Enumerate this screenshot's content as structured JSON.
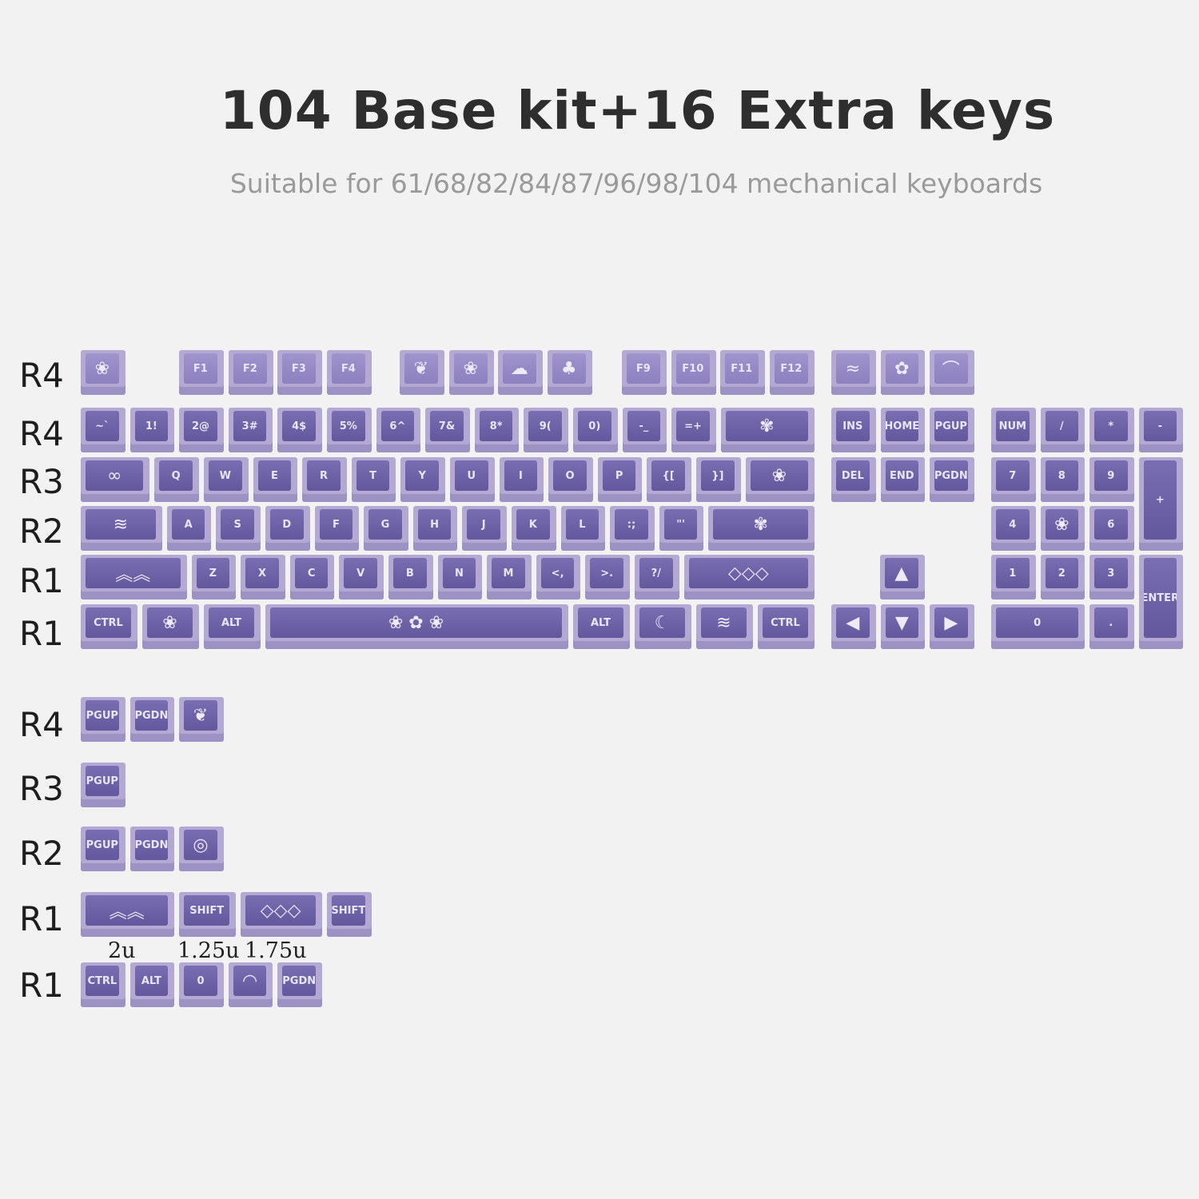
{
  "header": {
    "title": "104 Base kit+16 Extra keys",
    "subtitle": "Suitable for 61/68/82/84/87/96/98/104 mechanical keyboards"
  },
  "colors": {
    "background": "#f2f2f2",
    "keycap_face": "#6c60a6",
    "keycap_side": "#b3a9d3",
    "legend": "#e9e6f6"
  },
  "row_labels": {
    "base": [
      "R4",
      "R4",
      "R3",
      "R2",
      "R1",
      "R1"
    ],
    "extra": [
      "R4",
      "R3",
      "R2",
      "R1",
      "R1"
    ]
  },
  "size_labels": [
    "2u",
    "1.25u",
    "1.75u"
  ],
  "base_kit": {
    "f_row": [
      {
        "legend": "",
        "icon": "flower-icon"
      },
      {
        "legend": "F1"
      },
      {
        "legend": "F2"
      },
      {
        "legend": "F3"
      },
      {
        "legend": "F4"
      },
      {
        "legend": "",
        "icon": "leaf-icon"
      },
      {
        "legend": "",
        "icon": "flower-icon"
      },
      {
        "legend": "",
        "icon": "cloud-icon"
      },
      {
        "legend": "",
        "icon": "tree-icon"
      },
      {
        "legend": "F9"
      },
      {
        "legend": "F10"
      },
      {
        "legend": "F11"
      },
      {
        "legend": "F12"
      }
    ],
    "nav_top": [
      {
        "legend": "",
        "icon": "fish-icon"
      },
      {
        "legend": "",
        "icon": "bird-icon"
      },
      {
        "legend": "",
        "icon": "bridge-icon"
      }
    ],
    "number_row": [
      {
        "legend": "~`"
      },
      {
        "legend": "1!"
      },
      {
        "legend": "2@"
      },
      {
        "legend": "3#"
      },
      {
        "legend": "4$"
      },
      {
        "legend": "5%"
      },
      {
        "legend": "6^"
      },
      {
        "legend": "7&"
      },
      {
        "legend": "8*"
      },
      {
        "legend": "9("
      },
      {
        "legend": "0)"
      },
      {
        "legend": "-_"
      },
      {
        "legend": "=+"
      },
      {
        "legend": "",
        "icon": "lotus-icon"
      }
    ],
    "q_row": [
      {
        "legend": "",
        "icon": "infinity-icon"
      },
      {
        "legend": "Q"
      },
      {
        "legend": "W"
      },
      {
        "legend": "E"
      },
      {
        "legend": "R"
      },
      {
        "legend": "T"
      },
      {
        "legend": "Y"
      },
      {
        "legend": "U"
      },
      {
        "legend": "I"
      },
      {
        "legend": "O"
      },
      {
        "legend": "P"
      },
      {
        "legend": "{["
      },
      {
        "legend": "}]"
      },
      {
        "legend": "",
        "icon": "flower-icon"
      }
    ],
    "a_row": [
      {
        "legend": "",
        "icon": "wave-icon"
      },
      {
        "legend": "A"
      },
      {
        "legend": "S"
      },
      {
        "legend": "D"
      },
      {
        "legend": "F"
      },
      {
        "legend": "G"
      },
      {
        "legend": "H"
      },
      {
        "legend": "J"
      },
      {
        "legend": "K"
      },
      {
        "legend": "L"
      },
      {
        "legend": ":;"
      },
      {
        "legend": "\"'"
      },
      {
        "legend": "",
        "icon": "lotus-icon"
      }
    ],
    "z_row": [
      {
        "legend": "",
        "icon": "cloud-pattern-icon"
      },
      {
        "legend": "Z"
      },
      {
        "legend": "X"
      },
      {
        "legend": "C"
      },
      {
        "legend": "V"
      },
      {
        "legend": "B"
      },
      {
        "legend": "N"
      },
      {
        "legend": "M"
      },
      {
        "legend": "<,"
      },
      {
        "legend": ">."
      },
      {
        "legend": "?/"
      },
      {
        "legend": "",
        "icon": "wave-pattern-icon"
      }
    ],
    "bottom_row": [
      {
        "legend": "CTRL"
      },
      {
        "legend": "",
        "icon": "flower-icon"
      },
      {
        "legend": "ALT"
      },
      {
        "legend": "",
        "icon": "lotus-pond-icon"
      },
      {
        "legend": "ALT"
      },
      {
        "legend": "",
        "icon": "moon-icon"
      },
      {
        "legend": "",
        "icon": "wave-icon"
      },
      {
        "legend": "CTRL"
      }
    ],
    "nav": [
      {
        "legend": "INS"
      },
      {
        "legend": "HOME"
      },
      {
        "legend": "PGUP"
      },
      {
        "legend": "DEL"
      },
      {
        "legend": "END"
      },
      {
        "legend": "PGDN"
      }
    ],
    "arrows": [
      {
        "legend": "",
        "icon": "arrow-up-icon"
      },
      {
        "legend": "",
        "icon": "arrow-left-icon"
      },
      {
        "legend": "",
        "icon": "arrow-down-icon"
      },
      {
        "legend": "",
        "icon": "arrow-right-icon"
      }
    ],
    "numpad": [
      {
        "legend": "NUM"
      },
      {
        "legend": "/"
      },
      {
        "legend": "*"
      },
      {
        "legend": "-"
      },
      {
        "legend": "7"
      },
      {
        "legend": "8"
      },
      {
        "legend": "9"
      },
      {
        "legend": "+"
      },
      {
        "legend": "4"
      },
      {
        "legend": "",
        "icon": "flower-icon"
      },
      {
        "legend": "6"
      },
      {
        "legend": "1"
      },
      {
        "legend": "2"
      },
      {
        "legend": "3"
      },
      {
        "legend": "ENTER"
      },
      {
        "legend": "0"
      },
      {
        "legend": "."
      }
    ]
  },
  "extra_keys": {
    "row_r4": [
      {
        "legend": "PGUP"
      },
      {
        "legend": "PGDN"
      },
      {
        "legend": "",
        "icon": "leaf-icon"
      }
    ],
    "row_r3": [
      {
        "legend": "PGUP"
      }
    ],
    "row_r2": [
      {
        "legend": "PGUP"
      },
      {
        "legend": "PGDN"
      },
      {
        "legend": "",
        "icon": "shell-icon"
      }
    ],
    "row_r1a": [
      {
        "legend": "",
        "icon": "cloud-pattern-icon"
      },
      {
        "legend": "SHIFT"
      },
      {
        "legend": "",
        "icon": "wave-pattern-icon"
      },
      {
        "legend": "SHIFT"
      }
    ],
    "row_r1b": [
      {
        "legend": "CTRL"
      },
      {
        "legend": "ALT"
      },
      {
        "legend": "0"
      },
      {
        "legend": "",
        "icon": "fan-icon"
      },
      {
        "legend": "PGDN"
      }
    ]
  }
}
